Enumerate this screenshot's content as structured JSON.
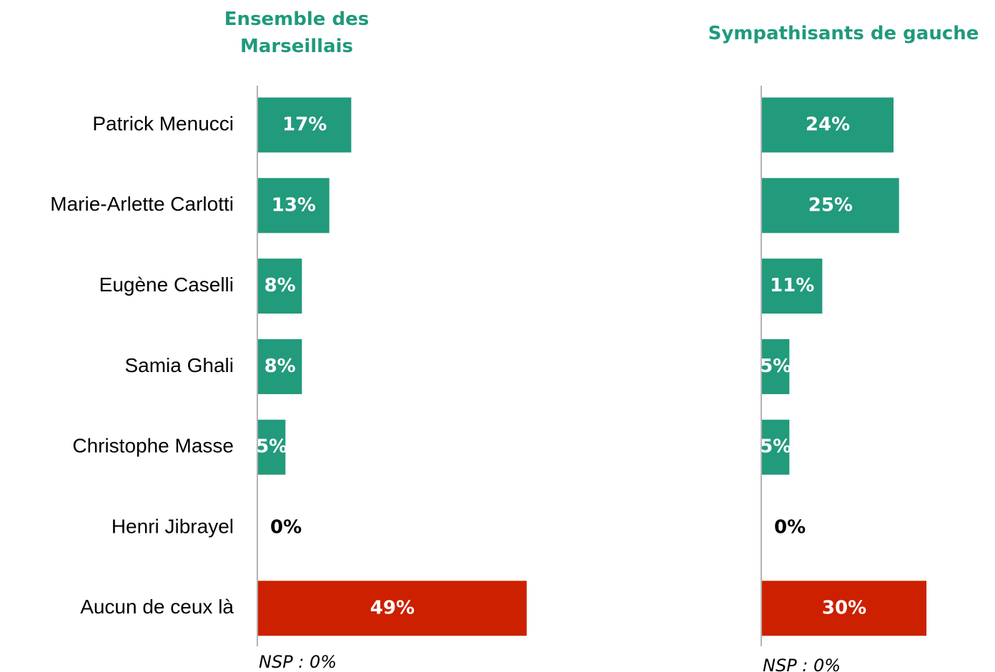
{
  "chart_data": [
    {
      "type": "hbar",
      "title": "Ensemble des Marseillais",
      "categories": [
        "Patrick Menucci",
        "Marie-Arlette Carlotti",
        "Eugène Caselli",
        "Samia Ghali",
        "Christophe Masse",
        "Henri Jibrayel",
        "Aucun de ceux là"
      ],
      "values": [
        17,
        13,
        8,
        8,
        5,
        0,
        49
      ],
      "value_labels": [
        "17%",
        "13%",
        "8%",
        "8%",
        "5%",
        "0%",
        "49%"
      ],
      "colors": [
        "#229a7c",
        "#229a7c",
        "#229a7c",
        "#229a7c",
        "#229a7c",
        "#229a7c",
        "#cc2000"
      ],
      "annotation": "NSP : 0%"
    },
    {
      "type": "hbar",
      "title": "Sympathisants de gauche",
      "categories": [
        null,
        null,
        null,
        null,
        null,
        null,
        null
      ],
      "values": [
        24,
        25,
        11,
        5,
        5,
        0,
        30
      ],
      "value_labels": [
        "24%",
        "25%",
        "11%",
        "5%",
        "5%",
        "0%",
        "30%"
      ],
      "colors": [
        "#229a7c",
        "#229a7c",
        "#229a7c",
        "#229a7c",
        "#229a7c",
        "#229a7c",
        "#cc2000"
      ],
      "annotation": "NSP : 0%"
    }
  ]
}
